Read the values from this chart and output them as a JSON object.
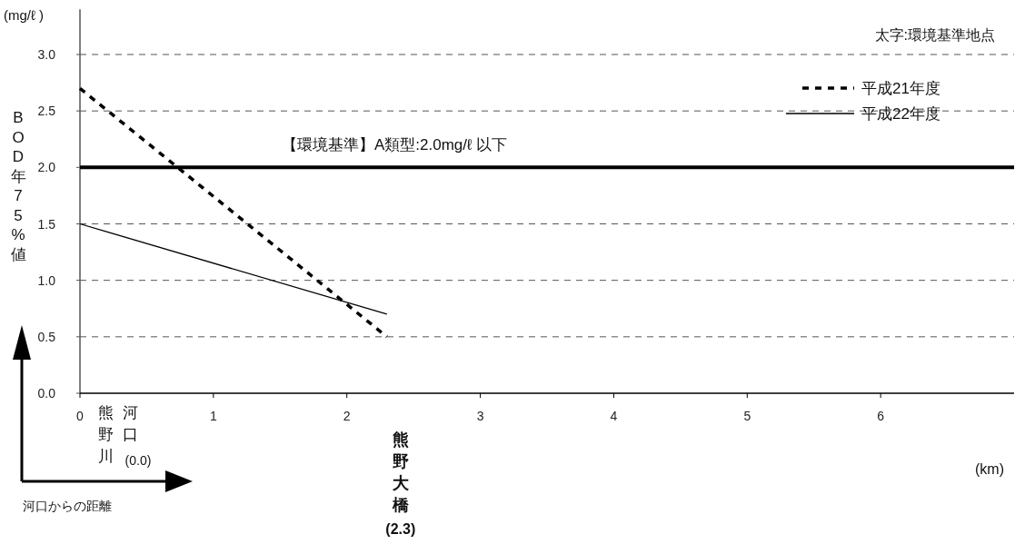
{
  "chart_data": {
    "type": "line",
    "ylabel": "BOD年75%値",
    "x": [
      0,
      2.3
    ],
    "series": [
      {
        "name": "平成21年度",
        "color": "#000000",
        "values": [
          2.7,
          0.5
        ],
        "line_style": "dashed"
      },
      {
        "name": "平成22年度",
        "color": "#000000",
        "values": [
          1.5,
          0.7
        ],
        "line_style": "solid"
      }
    ],
    "xlim": [
      0,
      7
    ],
    "xticks": [
      0,
      1,
      2,
      3,
      4,
      5,
      6
    ],
    "ylim": [
      0,
      3.4
    ],
    "yticks": [
      {
        "value": 0,
        "label": "0.0"
      },
      {
        "value": 0.5,
        "label": "0.5"
      },
      {
        "value": 1,
        "label": "1.0"
      },
      {
        "value": 1.5,
        "label": "1.5"
      },
      {
        "value": 2,
        "label": "2.0"
      },
      {
        "value": 2.5,
        "label": "2.5"
      },
      {
        "value": 3,
        "label": "3.0"
      }
    ],
    "grid": "y",
    "legend": "top right",
    "marker": "none",
    "ref_lines": [
      {
        "axis": "y",
        "value": 2.0,
        "label": "【環境基準】A類型:2.0mg/ℓ 以下",
        "color": "#000000"
      }
    ],
    "annotations": [
      "(mg/ℓ )",
      "太字:環境基準地点",
      "(km)",
      "河口からの距離",
      "熊野川河口(0.0)",
      "熊野大橋(2.3)"
    ]
  }
}
